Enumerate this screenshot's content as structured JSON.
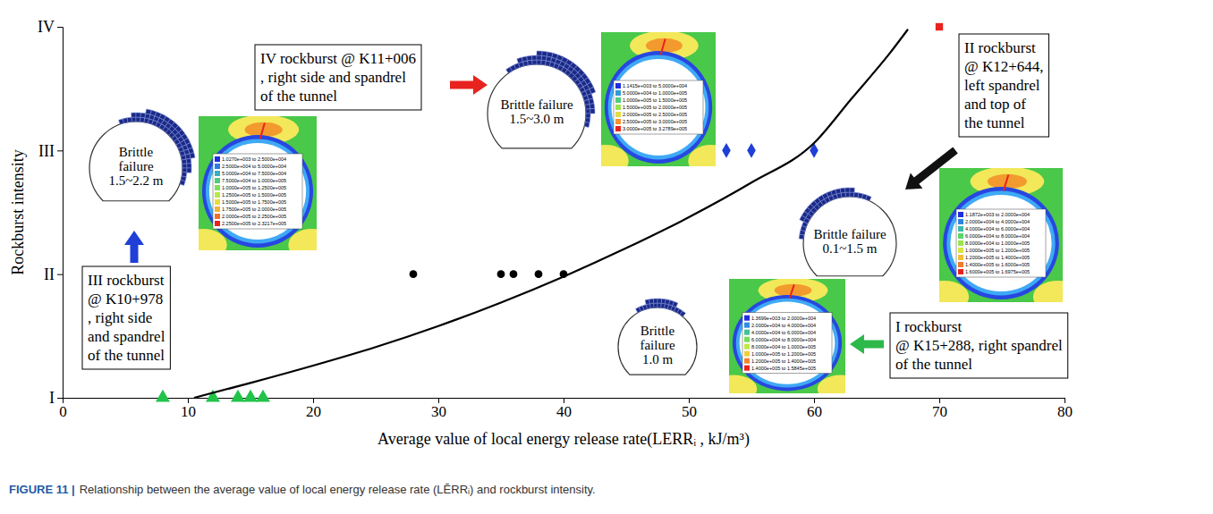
{
  "chart_data": {
    "type": "scatter",
    "xlabel": "Average value of local energy release rate(LERRᵢ , kJ/m³)",
    "ylabel": "Rockburst intensity",
    "xlim": [
      0,
      80
    ],
    "xticks": [
      0,
      10,
      20,
      30,
      40,
      50,
      60,
      70,
      80
    ],
    "ylim": [
      1,
      4
    ],
    "yticks": [
      {
        "value": 1,
        "label": "I"
      },
      {
        "value": 2,
        "label": "II"
      },
      {
        "value": 3,
        "label": "III"
      },
      {
        "value": 4,
        "label": "IV"
      }
    ],
    "grid": false,
    "series": [
      {
        "type": "scatter",
        "marker": "triangle",
        "color": "#22c34a",
        "x": [
          8,
          12,
          14,
          15,
          16
        ],
        "values": [
          1,
          1,
          1,
          1,
          1
        ]
      },
      {
        "type": "scatter",
        "marker": "circle",
        "color": "#000000",
        "x": [
          28,
          35,
          36,
          38,
          40
        ],
        "values": [
          2,
          2,
          2,
          2,
          2
        ]
      },
      {
        "type": "scatter",
        "marker": "diamond",
        "color": "#1f3fd6",
        "x": [
          53,
          55,
          60
        ],
        "values": [
          3,
          3,
          3
        ]
      },
      {
        "type": "scatter",
        "marker": "square",
        "color": "#e8231f",
        "x": [
          70
        ],
        "values": [
          4
        ]
      },
      {
        "type": "line",
        "line_style": "solid",
        "color": "#000000",
        "x": [
          10.5,
          15,
          20,
          25,
          30,
          35,
          40,
          45,
          50,
          55,
          60,
          63,
          66,
          67.5
        ],
        "values": [
          1,
          1.12,
          1.26,
          1.41,
          1.58,
          1.77,
          1.98,
          2.21,
          2.46,
          2.74,
          3.06,
          3.42,
          3.78,
          3.98
        ]
      }
    ],
    "annotations": [
      {
        "lines": [
          "IV rockburst @ K11+006",
          ", right side and spandrel",
          "of the tunnel"
        ],
        "failure": [
          "Brittle failure",
          "1.5~3.0 m"
        ],
        "contour_legend": [
          "1.1415e+003 to 5.0000e+004",
          "5.0000e+004 to 1.0000e+005",
          "1.0000e+005 to 1.5000e+005",
          "1.5000e+005 to 2.0000e+005",
          "2.0000e+005 to 2.5000e+005",
          "2.5000e+005 to 3.0000e+005",
          "3.0000e+005 to 3.2789e+005"
        ]
      },
      {
        "lines": [
          "II rockburst",
          "@ K12+644,",
          "left spandrel",
          "and top of",
          "the tunnel"
        ],
        "failure": [
          "Brittle failure",
          "0.1~1.5 m"
        ],
        "contour_legend": [
          "1.1872e+003 to 2.0000e+004",
          "2.0000e+004 to 4.0000e+004",
          "4.0000e+004 to 6.0000e+004",
          "6.0000e+004 to 8.0000e+004",
          "8.0000e+004 to 1.0000e+005",
          "1.0000e+005 to 1.2000e+005",
          "1.2000e+005 to 1.4000e+005",
          "1.4000e+005 to 1.6000e+005",
          "1.6000e+005 to 1.6975e+005"
        ]
      },
      {
        "lines": [
          "III rockburst",
          "@ K10+978",
          ", right side",
          "and spandrel",
          "of the tunnel"
        ],
        "failure": [
          "Brittle",
          "failure",
          "1.5~2.2 m"
        ],
        "contour_legend": [
          "1.0270e+003 to 2.5000e+004",
          "2.5000e+004 to 5.0000e+004",
          "5.0000e+004 to 7.5000e+004",
          "7.5000e+004 to 1.0000e+005",
          "1.0000e+005 to 1.2500e+005",
          "1.2500e+005 to 1.5000e+005",
          "1.5000e+005 to 1.7500e+005",
          "1.7500e+005 to 2.0000e+005",
          "2.0000e+005 to 2.2500e+005",
          "2.2500e+005 to 2.3217e+005"
        ]
      },
      {
        "lines": [
          "I rockburst",
          "@ K15+288, right spandrel",
          "of the tunnel"
        ],
        "failure": [
          "Brittle",
          "failure",
          "1.0 m"
        ],
        "contour_legend": [
          "1.3699e+003 to 2.0000e+004",
          "2.0000e+004 to 4.0000e+004",
          "4.0000e+004 to 6.0000e+004",
          "6.0000e+004 to 8.0000e+004",
          "8.0000e+004 to 1.0000e+005",
          "1.0000e+005 to 1.2000e+005",
          "1.2000e+005 to 1.4000e+005",
          "1.4000e+005 to 1.5845e+005"
        ]
      }
    ],
    "caption_label": "FIGURE 11 |",
    "caption": "Relationship between the average value of local energy release rate (LĒRRᵢ) and rockburst intensity."
  }
}
